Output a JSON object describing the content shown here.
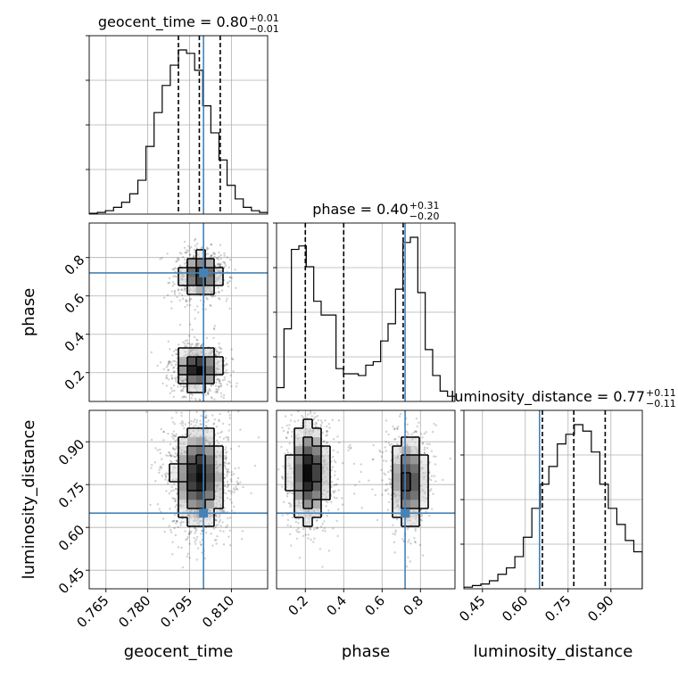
{
  "chart_data": {
    "type": "corner",
    "truth_color": "#4682b4",
    "parameters": [
      {
        "name": "geocent_time",
        "title": "geocent_time = 0.80",
        "title_upper": "+0.01",
        "title_lower": "−0.01",
        "range": [
          0.759,
          0.823
        ],
        "ticks": [
          "0.765",
          "0.780",
          "0.795",
          "0.810"
        ],
        "tick_values": [
          0.765,
          0.78,
          0.795,
          0.81
        ],
        "truth": 0.8,
        "quantiles": [
          0.791,
          0.7985,
          0.806
        ],
        "hist_counts": [
          0.5,
          1,
          2,
          4,
          7,
          12,
          20,
          40,
          60,
          76,
          88,
          97,
          95,
          85,
          64,
          48,
          32,
          17,
          9,
          4,
          2,
          1
        ]
      },
      {
        "name": "phase",
        "title": "phase = 0.40",
        "title_upper": "+0.31",
        "title_lower": "−0.20",
        "range": [
          0.05,
          0.98
        ],
        "ticks": [
          "0.2",
          "0.4",
          "0.6",
          "0.8"
        ],
        "tick_values": [
          0.2,
          0.4,
          0.6,
          0.8
        ],
        "truth": 0.72,
        "quantiles": [
          0.2,
          0.4,
          0.71
        ],
        "hist_counts": [
          8,
          42,
          88,
          90,
          78,
          58,
          50,
          50,
          19,
          16,
          16,
          15,
          21,
          23,
          35,
          45,
          65,
          92,
          95,
          63,
          30,
          15,
          6,
          3
        ]
      },
      {
        "name": "luminosity_distance",
        "title": "luminosity_distance = 0.77",
        "title_upper": "+0.11",
        "title_lower": "−0.11",
        "range": [
          0.385,
          1.01
        ],
        "ticks": [
          "0.45",
          "0.60",
          "0.75",
          "0.90"
        ],
        "tick_values": [
          0.45,
          0.6,
          0.75,
          0.9
        ],
        "truth": 0.65,
        "quantiles": [
          0.66,
          0.77,
          0.88
        ],
        "hist_counts": [
          1,
          2,
          3,
          5,
          9,
          13,
          20,
          32,
          50,
          65,
          76,
          90,
          96,
          102,
          98,
          85,
          65,
          50,
          40,
          30,
          23
        ]
      }
    ],
    "density_blobs": {
      "geocent_time__phase": [
        {
          "cx": 0.799,
          "cy": 0.71,
          "sx": 0.0037,
          "sy": 0.055,
          "w": 1.0
        },
        {
          "cx": 0.798,
          "cy": 0.22,
          "sx": 0.004,
          "sy": 0.055,
          "w": 1.15
        }
      ],
      "geocent_time__luminosity_distance": [
        {
          "cx": 0.7985,
          "cy": 0.78,
          "sx": 0.0045,
          "sy": 0.085,
          "w": 1.0
        }
      ],
      "phase__luminosity_distance": [
        {
          "cx": 0.22,
          "cy": 0.79,
          "sx": 0.05,
          "sy": 0.085,
          "w": 1.0
        },
        {
          "cx": 0.74,
          "cy": 0.76,
          "sx": 0.045,
          "sy": 0.08,
          "w": 0.85
        },
        {
          "cx": 0.47,
          "cy": 0.8,
          "sx": 0.16,
          "sy": 0.06,
          "w": 0.12
        }
      ]
    }
  }
}
